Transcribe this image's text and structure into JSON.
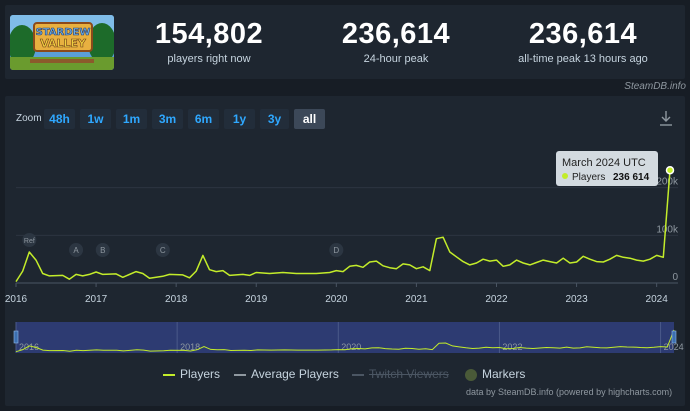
{
  "header": {
    "logo_text_1": "STARDEW",
    "logo_text_2": "VALLEY",
    "stats": [
      {
        "value": "154,802",
        "label": "players right now"
      },
      {
        "value": "236,614",
        "label": "24-hour peak"
      },
      {
        "value": "236,614",
        "label": "all-time peak 13 hours ago"
      }
    ]
  },
  "credit_top": "SteamDB.info",
  "zoom": {
    "label": "Zoom",
    "options": [
      "48h",
      "1w",
      "1m",
      "3m",
      "6m",
      "1y",
      "3y",
      "all"
    ],
    "selected": "all"
  },
  "icons": {
    "download": "download-icon"
  },
  "colors": {
    "players_line": "#c3ec2a",
    "background": "#171d25",
    "panel": "#1e2630",
    "button_text": "#2fa8ff",
    "navigator_fill": "#2d3b72"
  },
  "chart_data": {
    "type": "line",
    "x_axis_type": "datetime",
    "xlim": [
      "2016-01",
      "2024-03"
    ],
    "ylim": [
      0,
      300000
    ],
    "x_ticks": [
      "2016",
      "2017",
      "2018",
      "2019",
      "2020",
      "2021",
      "2022",
      "2023",
      "2024"
    ],
    "y_ticks": [
      "0",
      "100k",
      "200k"
    ],
    "grid": true,
    "series": [
      {
        "name": "Players",
        "color": "#c3ec2a",
        "points": [
          [
            "2016-01",
            3000
          ],
          [
            "2016-02",
            25000
          ],
          [
            "2016-03",
            65000
          ],
          [
            "2016-04",
            48000
          ],
          [
            "2016-05",
            20000
          ],
          [
            "2016-06",
            15000
          ],
          [
            "2016-08",
            16000
          ],
          [
            "2016-09",
            8000
          ],
          [
            "2016-10",
            18000
          ],
          [
            "2016-11",
            15000
          ],
          [
            "2016-12",
            18000
          ],
          [
            "2017-01",
            23000
          ],
          [
            "2017-02",
            18000
          ],
          [
            "2017-04",
            19000
          ],
          [
            "2017-05",
            12000
          ],
          [
            "2017-07",
            24000
          ],
          [
            "2017-08",
            20000
          ],
          [
            "2017-09",
            10000
          ],
          [
            "2017-11",
            14000
          ],
          [
            "2017-12",
            18000
          ],
          [
            "2018-02",
            17000
          ],
          [
            "2018-03",
            11000
          ],
          [
            "2018-04",
            25000
          ],
          [
            "2018-05",
            58000
          ],
          [
            "2018-06",
            28000
          ],
          [
            "2018-07",
            24000
          ],
          [
            "2018-08",
            26000
          ],
          [
            "2018-09",
            16000
          ],
          [
            "2018-11",
            18000
          ],
          [
            "2018-12",
            16000
          ],
          [
            "2019-01",
            22000
          ],
          [
            "2019-03",
            20000
          ],
          [
            "2019-05",
            22000
          ],
          [
            "2019-07",
            20000
          ],
          [
            "2019-10",
            20000
          ],
          [
            "2019-12",
            22000
          ],
          [
            "2020-01",
            26000
          ],
          [
            "2020-02",
            24000
          ],
          [
            "2020-03",
            35000
          ],
          [
            "2020-04",
            37000
          ],
          [
            "2020-05",
            33000
          ],
          [
            "2020-06",
            44000
          ],
          [
            "2020-07",
            46000
          ],
          [
            "2020-08",
            36000
          ],
          [
            "2020-09",
            32000
          ],
          [
            "2020-10",
            30000
          ],
          [
            "2020-11",
            40000
          ],
          [
            "2020-12",
            38000
          ],
          [
            "2021-01",
            30000
          ],
          [
            "2021-02",
            34000
          ],
          [
            "2021-03",
            26000
          ],
          [
            "2021-04",
            93000
          ],
          [
            "2021-05",
            96000
          ],
          [
            "2021-06",
            65000
          ],
          [
            "2021-07",
            55000
          ],
          [
            "2021-08",
            45000
          ],
          [
            "2021-09",
            38000
          ],
          [
            "2021-10",
            42000
          ],
          [
            "2021-11",
            50000
          ],
          [
            "2021-12",
            46000
          ],
          [
            "2022-01",
            48000
          ],
          [
            "2022-02",
            35000
          ],
          [
            "2022-03",
            38000
          ],
          [
            "2022-04",
            48000
          ],
          [
            "2022-05",
            42000
          ],
          [
            "2022-06",
            38000
          ],
          [
            "2022-07",
            43000
          ],
          [
            "2022-08",
            48000
          ],
          [
            "2022-09",
            45000
          ],
          [
            "2022-10",
            42000
          ],
          [
            "2022-11",
            52000
          ],
          [
            "2022-12",
            42000
          ],
          [
            "2023-01",
            44000
          ],
          [
            "2023-02",
            56000
          ],
          [
            "2023-03",
            50000
          ],
          [
            "2023-04",
            45000
          ],
          [
            "2023-05",
            44000
          ],
          [
            "2023-06",
            50000
          ],
          [
            "2023-07",
            58000
          ],
          [
            "2023-08",
            54000
          ],
          [
            "2023-09",
            52000
          ],
          [
            "2023-10",
            48000
          ],
          [
            "2023-11",
            46000
          ],
          [
            "2023-12",
            50000
          ],
          [
            "2024-01",
            58000
          ],
          [
            "2024-02",
            54000
          ],
          [
            "2024-03",
            236614
          ]
        ]
      }
    ],
    "markers": [
      {
        "label": "Ref",
        "date": "2016-03"
      },
      {
        "label": "A",
        "date": "2016-10"
      },
      {
        "label": "B",
        "date": "2017-02"
      },
      {
        "label": "C",
        "date": "2017-11"
      },
      {
        "label": "D",
        "date": "2020-01"
      }
    ],
    "tooltip": {
      "title": "March 2024 UTC",
      "series": "Players",
      "value": "236 614"
    },
    "navigator": {
      "x_ticks": [
        "2016",
        "2018",
        "2020",
        "2022",
        "2024"
      ]
    },
    "legend": {
      "placement": "bottom-center",
      "items": [
        {
          "label": "Players",
          "style": "line",
          "color": "#c3ec2a",
          "enabled": true
        },
        {
          "label": "Average Players",
          "style": "line",
          "color": "#8f98a0",
          "enabled": true
        },
        {
          "label": "Twitch Viewers",
          "style": "line",
          "color": "#4b5663",
          "enabled": false
        },
        {
          "label": "Markers",
          "style": "dot",
          "color": "#4a5a38",
          "enabled": true
        }
      ]
    }
  },
  "credit_bottom": "data by SteamDB.info (powered by highcharts.com)"
}
